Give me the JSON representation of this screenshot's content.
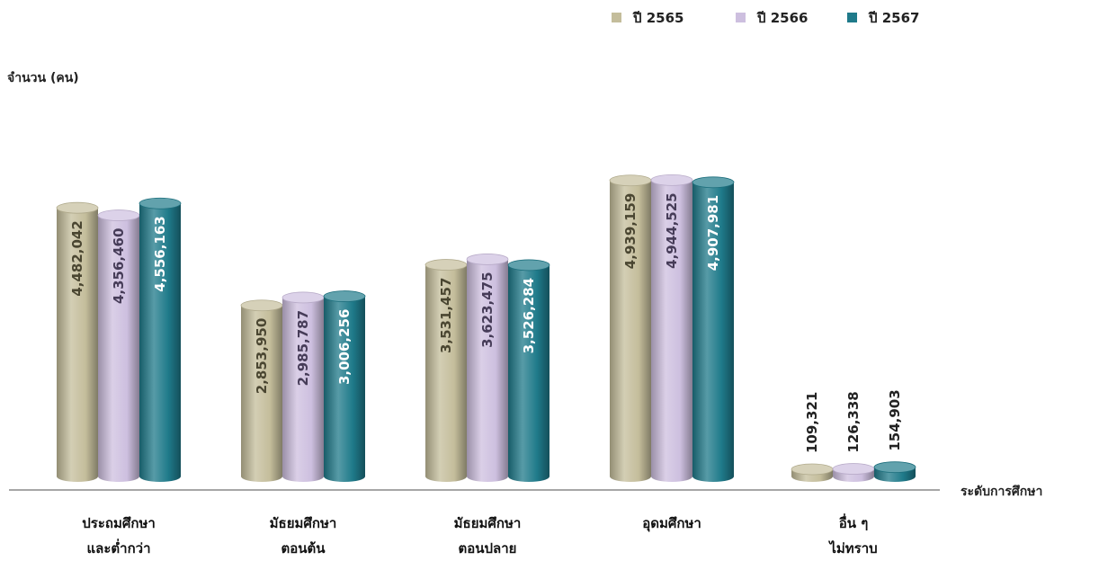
{
  "chart_data": {
    "type": "bar",
    "style": "3d-cylinder",
    "ylabel": "จำนวน (คน)",
    "xlabel": "ระดับการศึกษา",
    "categories": [
      [
        "ประถมศึกษา",
        "และต่ำกว่า"
      ],
      [
        "มัธยมศึกษา",
        "ตอนต้น"
      ],
      [
        "มัธยมศึกษา",
        "ตอนปลาย"
      ],
      [
        "อุดมศึกษา"
      ],
      [
        "อื่น ๆ",
        "ไม่ทราบ"
      ]
    ],
    "series": [
      {
        "name": "ปี 2565",
        "values": [
          4482042,
          2853950,
          3531457,
          4939159,
          109321
        ],
        "labels": [
          "4,482,042",
          "2,853,950",
          "3,531,457",
          "4,939,159",
          "109,321"
        ],
        "color": "#c4bd9b",
        "label_color": "#4a4631"
      },
      {
        "name": "ปี 2566",
        "values": [
          4356460,
          2985787,
          3623475,
          4944525,
          126338
        ],
        "labels": [
          "4,356,460",
          "2,985,787",
          "3,623,475",
          "4,944,525",
          "126,338"
        ],
        "color": "#cdbfdf",
        "label_color": "#463c58"
      },
      {
        "name": "ปี 2567",
        "values": [
          4556163,
          3006256,
          3526284,
          4907981,
          154903
        ],
        "labels": [
          "4,556,163",
          "3,006,256",
          "3,526,284",
          "4,907,981",
          "154,903"
        ],
        "color": "#1f7a8a",
        "label_color": "#ffffff"
      }
    ],
    "ylim": [
      0,
      5400000
    ],
    "grid": false,
    "legend_position": "top-right",
    "value_labels": "rotated-inside-bar"
  }
}
